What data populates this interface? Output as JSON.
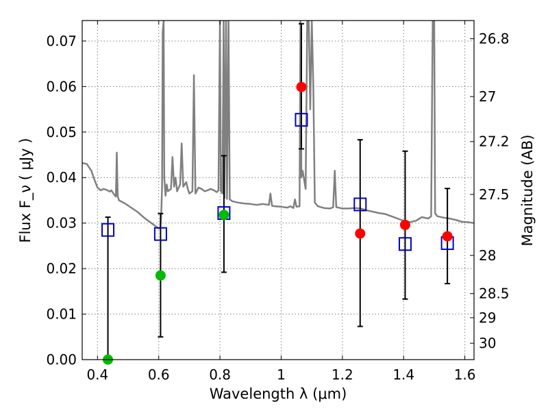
{
  "chart_data": {
    "type": "scatter",
    "title": "",
    "xlabel": "Wavelength  λ (μm)",
    "ylabel": "Flux  F_ν  ( μJy )",
    "y2label": "Magnitude (AB)",
    "xlim": [
      0.35,
      1.63
    ],
    "ylim": [
      0.0,
      0.0745
    ],
    "grid": true,
    "x_ticks": [
      0.4,
      0.6,
      0.8,
      1.0,
      1.2,
      1.4,
      1.6
    ],
    "x_tick_labels": [
      "0.4",
      "0.6",
      "0.8",
      "1",
      "1.2",
      "1.4",
      "1.6"
    ],
    "y_ticks": [
      0.0,
      0.01,
      0.02,
      0.03,
      0.04,
      0.05,
      0.06,
      0.07
    ],
    "y_tick_labels": [
      "0.00",
      "0.01",
      "0.02",
      "0.03",
      "0.04",
      "0.05",
      "0.06",
      "0.07"
    ],
    "y2_ticks": [
      {
        "label": "26.8",
        "flux": 0.0705
      },
      {
        "label": "27",
        "flux": 0.0578
      },
      {
        "label": "27.2",
        "flux": 0.0479
      },
      {
        "label": "27.5",
        "flux": 0.0363
      },
      {
        "label": "28",
        "flux": 0.0229
      },
      {
        "label": "28.5",
        "flux": 0.0145
      },
      {
        "label": "29",
        "flux": 0.0092
      },
      {
        "label": "30",
        "flux": 0.0036
      }
    ],
    "series": [
      {
        "kind": "model_spectrum",
        "color": "#808080",
        "points": [
          [
            0.35,
            0.0432
          ],
          [
            0.365,
            0.043
          ],
          [
            0.38,
            0.0415
          ],
          [
            0.39,
            0.0395
          ],
          [
            0.4,
            0.0378
          ],
          [
            0.41,
            0.0372
          ],
          [
            0.42,
            0.0375
          ],
          [
            0.43,
            0.0373
          ],
          [
            0.44,
            0.0369
          ],
          [
            0.445,
            0.0372
          ],
          [
            0.455,
            0.0362
          ],
          [
            0.46,
            0.0358
          ],
          [
            0.463,
            0.0455
          ],
          [
            0.466,
            0.036
          ],
          [
            0.47,
            0.035
          ],
          [
            0.49,
            0.0343
          ],
          [
            0.51,
            0.0334
          ],
          [
            0.53,
            0.0325
          ],
          [
            0.55,
            0.0313
          ],
          [
            0.57,
            0.0303
          ],
          [
            0.59,
            0.0293
          ],
          [
            0.6,
            0.0288
          ],
          [
            0.605,
            0.029
          ],
          [
            0.608,
            0.0315
          ],
          [
            0.611,
            0.038
          ],
          [
            0.613,
            0.072
          ],
          [
            0.616,
            0.0745
          ],
          [
            0.618,
            0.04
          ],
          [
            0.622,
            0.036
          ],
          [
            0.626,
            0.0385
          ],
          [
            0.63,
            0.037
          ],
          [
            0.64,
            0.0375
          ],
          [
            0.645,
            0.0445
          ],
          [
            0.65,
            0.038
          ],
          [
            0.655,
            0.04
          ],
          [
            0.66,
            0.037
          ],
          [
            0.67,
            0.0385
          ],
          [
            0.675,
            0.0475
          ],
          [
            0.68,
            0.038
          ],
          [
            0.69,
            0.039
          ],
          [
            0.695,
            0.0375
          ],
          [
            0.7,
            0.0365
          ],
          [
            0.71,
            0.037
          ],
          [
            0.715,
            0.0625
          ],
          [
            0.72,
            0.0365
          ],
          [
            0.73,
            0.0378
          ],
          [
            0.74,
            0.0375
          ],
          [
            0.75,
            0.037
          ],
          [
            0.76,
            0.0372
          ],
          [
            0.77,
            0.0375
          ],
          [
            0.78,
            0.0372
          ],
          [
            0.79,
            0.0368
          ],
          [
            0.795,
            0.0372
          ],
          [
            0.8,
            0.0745
          ],
          [
            0.803,
            0.037
          ],
          [
            0.808,
            0.0365
          ],
          [
            0.812,
            0.0745
          ],
          [
            0.815,
            0.0355
          ],
          [
            0.82,
            0.0745
          ],
          [
            0.823,
            0.0353
          ],
          [
            0.828,
            0.0745
          ],
          [
            0.832,
            0.0352
          ],
          [
            0.84,
            0.0348
          ],
          [
            0.86,
            0.0345
          ],
          [
            0.88,
            0.0343
          ],
          [
            0.9,
            0.0342
          ],
          [
            0.92,
            0.034
          ],
          [
            0.94,
            0.0342
          ],
          [
            0.96,
            0.034
          ],
          [
            0.965,
            0.0365
          ],
          [
            0.97,
            0.0338
          ],
          [
            0.98,
            0.0337
          ],
          [
            1.0,
            0.0336
          ],
          [
            1.02,
            0.0334
          ],
          [
            1.03,
            0.0337
          ],
          [
            1.04,
            0.0333
          ],
          [
            1.045,
            0.0352
          ],
          [
            1.05,
            0.0336
          ],
          [
            1.06,
            0.0337
          ],
          [
            1.063,
            0.0745
          ],
          [
            1.066,
            0.04
          ],
          [
            1.07,
            0.0415
          ],
          [
            1.075,
            0.0395
          ],
          [
            1.08,
            0.0375
          ],
          [
            1.085,
            0.0745
          ],
          [
            1.09,
            0.0745
          ],
          [
            1.095,
            0.055
          ],
          [
            1.1,
            0.0745
          ],
          [
            1.105,
            0.06
          ],
          [
            1.11,
            0.0345
          ],
          [
            1.12,
            0.0337
          ],
          [
            1.14,
            0.0333
          ],
          [
            1.16,
            0.0332
          ],
          [
            1.17,
            0.0335
          ],
          [
            1.175,
            0.0415
          ],
          [
            1.18,
            0.0335
          ],
          [
            1.2,
            0.0332
          ],
          [
            1.22,
            0.0332
          ],
          [
            1.24,
            0.0333
          ],
          [
            1.26,
            0.0332
          ],
          [
            1.28,
            0.0328
          ],
          [
            1.3,
            0.0325
          ],
          [
            1.32,
            0.0322
          ],
          [
            1.34,
            0.032
          ],
          [
            1.36,
            0.0315
          ],
          [
            1.38,
            0.031
          ],
          [
            1.4,
            0.0305
          ],
          [
            1.42,
            0.0302
          ],
          [
            1.44,
            0.0305
          ],
          [
            1.46,
            0.0313
          ],
          [
            1.48,
            0.031
          ],
          [
            1.49,
            0.0315
          ],
          [
            1.495,
            0.0745
          ],
          [
            1.5,
            0.0745
          ],
          [
            1.503,
            0.0322
          ],
          [
            1.51,
            0.0315
          ],
          [
            1.53,
            0.0312
          ],
          [
            1.55,
            0.031
          ],
          [
            1.57,
            0.0307
          ],
          [
            1.59,
            0.0303
          ],
          [
            1.61,
            0.0302
          ],
          [
            1.63,
            0.03
          ]
        ]
      },
      {
        "kind": "model_photometry_squares",
        "color": "#0000cc",
        "x": [
          0.434,
          0.606,
          0.813,
          1.066,
          1.258,
          1.405,
          1.543
        ],
        "y": [
          0.0285,
          0.0276,
          0.0322,
          0.0527,
          0.0341,
          0.0254,
          0.0256
        ]
      },
      {
        "kind": "observed_points",
        "x": [
          0.434,
          0.606,
          0.813,
          1.066,
          1.258,
          1.405,
          1.543
        ],
        "y": [
          0.0,
          0.0185,
          0.0318,
          0.0599,
          0.0277,
          0.0296,
          0.0271
        ],
        "colors": [
          "#00bb00",
          "#00bb00",
          "#00bb00",
          "#ff0000",
          "#ff0000",
          "#ff0000",
          "#ff0000"
        ],
        "yerr_low": [
          0.0,
          0.005,
          0.0192,
          0.0463,
          0.0073,
          0.0133,
          0.0167
        ],
        "yerr_high": [
          0.0313,
          0.0321,
          0.0448,
          0.0738,
          0.0483,
          0.0458,
          0.0376
        ]
      }
    ]
  }
}
